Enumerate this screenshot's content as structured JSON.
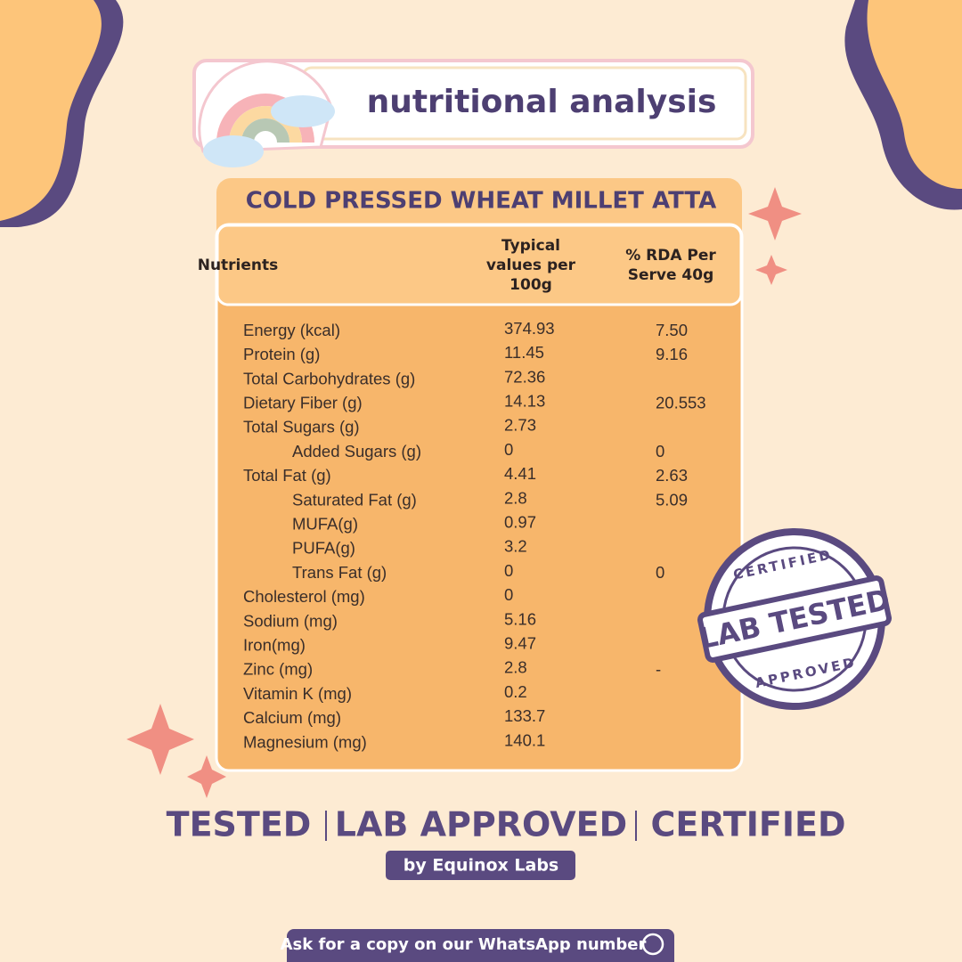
{
  "header": {
    "title": "nutritional analysis"
  },
  "table": {
    "title": "COLD PRESSED WHEAT MILLET ATTA",
    "columns": [
      "Nutrients",
      "Typical values per 100g",
      "% RDA Per Serve 40g"
    ],
    "rows": [
      {
        "name": "Energy (kcal)",
        "value": "374.93",
        "rda": "7.50"
      },
      {
        "name": "Protein (g)",
        "value": "11.45",
        "rda": "9.16"
      },
      {
        "name": "Total Carbohydrates (g)",
        "value": "72.36"
      },
      {
        "name": "Dietary Fiber (g)",
        "value": "14.13",
        "rda": "20.553"
      },
      {
        "name": "Total Sugars (g)",
        "value": "2.73",
        "children": [
          {
            "name": "Added Sugars (g)",
            "value": "0",
            "rda": "0"
          }
        ]
      },
      {
        "name": "Total Fat (g)",
        "value": "4.41",
        "rda": "2.63",
        "children": [
          {
            "name": "Saturated Fat (g)",
            "value": "2.8",
            "rda": "5.09"
          },
          {
            "name": "MUFA(g)",
            "value": "0.97"
          },
          {
            "name": "PUFA(g)",
            "value": "3.2"
          },
          {
            "name": "Trans Fat (g)",
            "value": "0",
            "rda": "0"
          }
        ]
      },
      {
        "name": "Cholesterol (mg)",
        "value": "0"
      },
      {
        "name": "Sodium (mg)",
        "value": "5.16"
      },
      {
        "name": "Iron(mg)",
        "value": "9.47"
      },
      {
        "name": "Zinc (mg)",
        "value": "2.8",
        "rda": "-"
      },
      {
        "name": "Vitamin K (mg)",
        "value": "0.2"
      },
      {
        "name": "Calcium (mg)",
        "value": "133.7"
      },
      {
        "name": "Magnesium (mg)",
        "value": "140.1"
      }
    ]
  },
  "stamp": {
    "top": "CERTIFIED",
    "center": "LAB TESTED",
    "bottom": "APPROVED"
  },
  "footer": {
    "claims": [
      "TESTED",
      "LAB APPROVED",
      "CERTIFIED"
    ],
    "lab": "by Equinox Labs",
    "note": "Ask for a copy on our WhatsApp number"
  }
}
